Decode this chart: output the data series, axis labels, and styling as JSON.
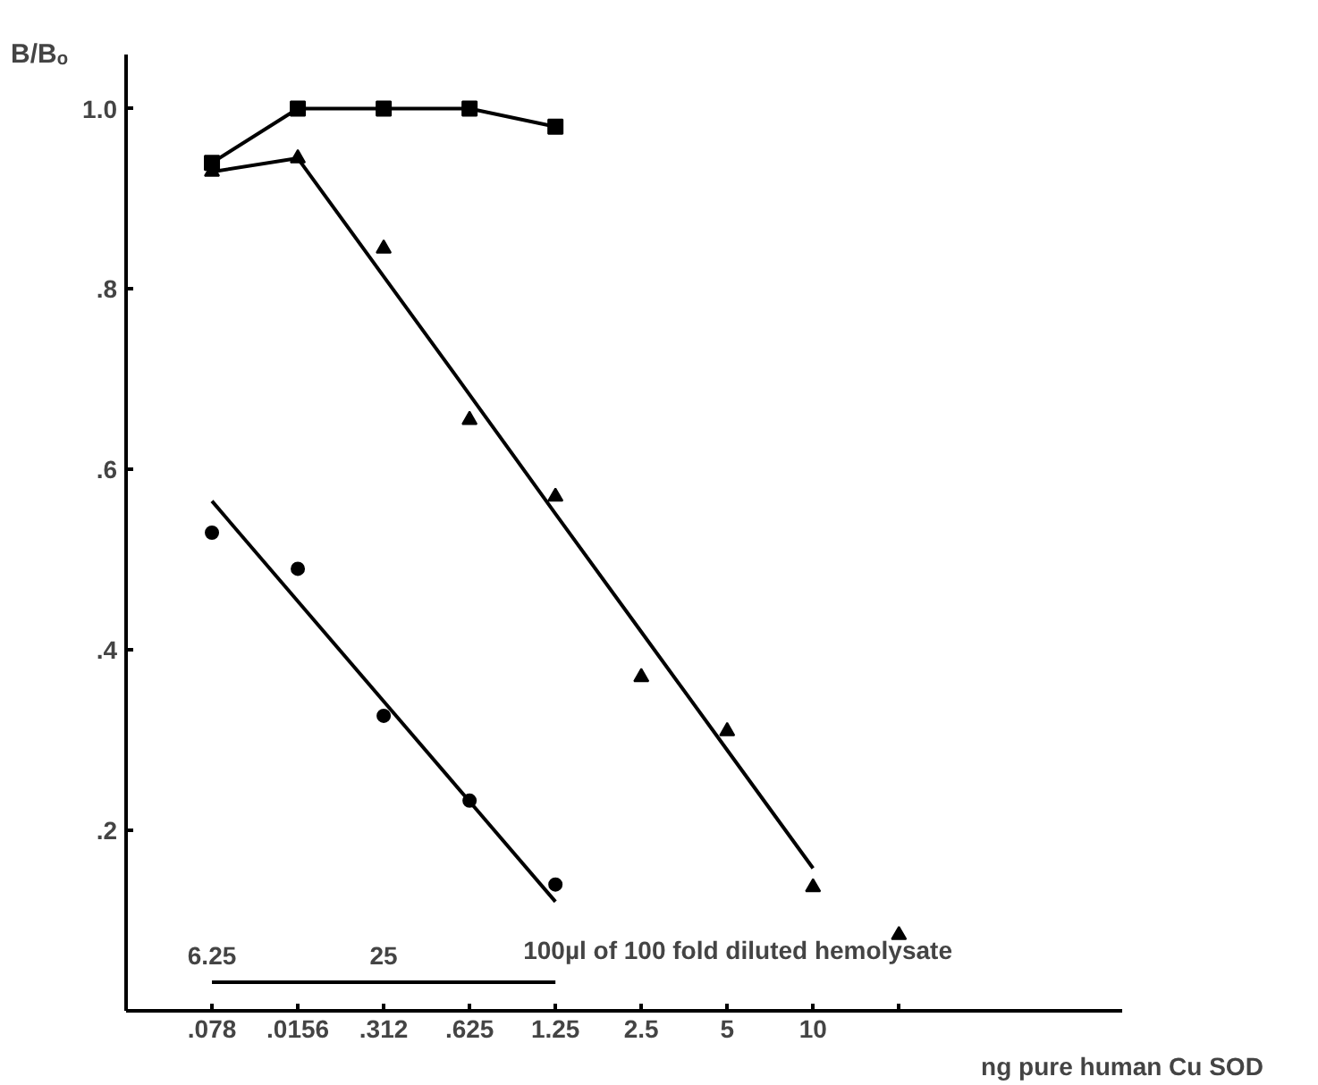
{
  "chart_data": {
    "type": "scatter",
    "ylabel": "B/Bₒ",
    "xlabel": "ng pure human Cu SOD",
    "categories": [
      ".078",
      ".0156",
      ".312",
      ".625",
      "1.25",
      "2.5",
      "5",
      "10",
      null
    ],
    "ylim": [
      0,
      1.06
    ],
    "yticks": [
      {
        "value": 0.2,
        "label": ".2"
      },
      {
        "value": 0.4,
        "label": ".4"
      },
      {
        "value": 0.6,
        "label": ".6"
      },
      {
        "value": 0.8,
        "label": ".8"
      },
      {
        "value": 1.0,
        "label": "1.0"
      }
    ],
    "series": [
      {
        "type": "line",
        "marker": "square",
        "color": "#000000",
        "values": [
          0.94,
          1.0,
          1.0,
          1.0,
          0.98,
          null,
          null,
          null,
          null
        ]
      },
      {
        "marker": "triangle",
        "color": "#000000",
        "values": [
          0.93,
          0.945,
          0.845,
          0.655,
          0.57,
          0.37,
          0.31,
          0.137,
          0.084
        ]
      },
      {
        "type": "line",
        "marker": "none",
        "color": "#000000",
        "values": [
          0.93,
          0.945,
          0.814,
          0.683,
          0.551,
          0.42,
          0.289,
          0.158,
          null
        ]
      },
      {
        "marker": "circle",
        "color": "#000000",
        "values": [
          0.53,
          0.49,
          0.327,
          0.233,
          0.14,
          null,
          null,
          null,
          null
        ]
      },
      {
        "type": "line",
        "marker": "none",
        "color": "#000000",
        "values": [
          0.565,
          0.454,
          0.343,
          0.232,
          0.121,
          null,
          null,
          null,
          null
        ]
      }
    ],
    "annotations": [
      "6.25",
      "25",
      "100µl of 100 fold diluted hemolysate"
    ]
  }
}
